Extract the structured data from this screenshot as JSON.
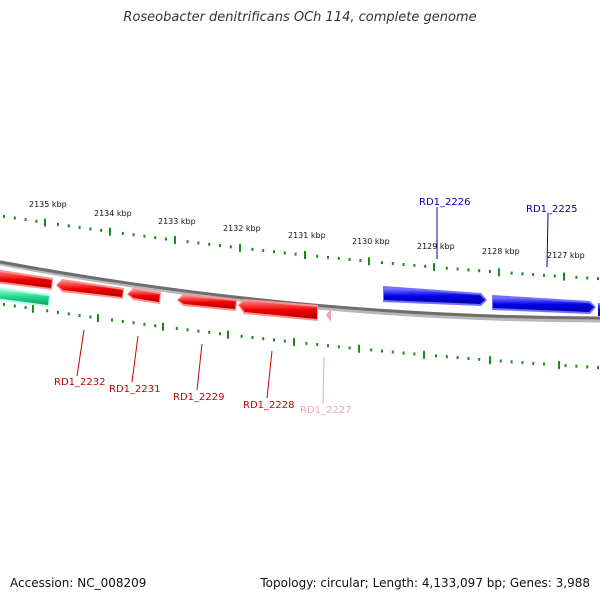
{
  "title": "Roseobacter denitrificans OCh 114, complete genome",
  "footer": {
    "accession": "Accession: NC_008209",
    "stats": "Topology: circular; Length: 4,133,097 bp; Genes: 3,988"
  },
  "colors": {
    "forward_gene": "#0000e6",
    "reverse_gene": "#ee0000",
    "faint_gene": "#f0a0c8",
    "rna_gene": "#20d890",
    "backbone": "#7a7a7a",
    "ticks": "#1a8a1a"
  },
  "kbp_labels": [
    "2135 kbp",
    "2134 kbp",
    "2133 kbp",
    "2132 kbp",
    "2131 kbp",
    "2130 kbp",
    "2129 kbp",
    "2128 kbp",
    "2127 kbp"
  ],
  "genes_top": [
    {
      "id": "RD1_2226",
      "color": "#0000aa"
    },
    {
      "id": "RD1_2225",
      "color": "#0000aa"
    }
  ],
  "genes_bottom": [
    {
      "id": "RD1_2232",
      "color": "#cc0000"
    },
    {
      "id": "RD1_2231",
      "color": "#cc0000"
    },
    {
      "id": "RD1_2229",
      "color": "#cc0000"
    },
    {
      "id": "RD1_2228",
      "color": "#cc0000"
    },
    {
      "id": "RD1_2227",
      "color": "#f0a0c8"
    }
  ]
}
